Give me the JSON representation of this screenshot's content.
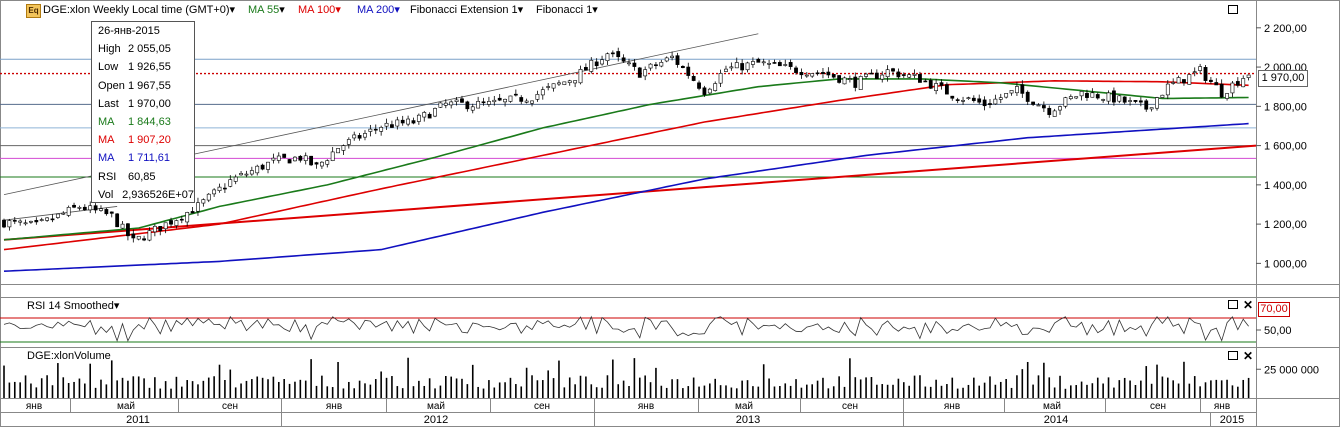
{
  "header": {
    "app_icon": "Eq",
    "title": "DGE:xlon Weekly Local time (GMT+0)",
    "legend": [
      {
        "label": "MA 55",
        "color": "#1a7a1a"
      },
      {
        "label": "MA 100",
        "color": "#dd0000"
      },
      {
        "label": "MA 200",
        "color": "#1010c0"
      },
      {
        "label": "Fibonacci Extension 1",
        "color": "#000000"
      },
      {
        "label": "Fibonacci 1",
        "color": "#000000"
      }
    ]
  },
  "tooltip": {
    "date": "26-янв-2015",
    "rows": [
      {
        "k": "High",
        "v": "2 055,05",
        "color": "#000000"
      },
      {
        "k": "Low",
        "v": "1 926,55",
        "color": "#000000"
      },
      {
        "k": "Open",
        "v": "1 967,55",
        "color": "#000000"
      },
      {
        "k": "Last",
        "v": "1 970,00",
        "color": "#000000"
      },
      {
        "k": "MA",
        "v": "1 844,63",
        "color": "#1a7a1a"
      },
      {
        "k": "MA",
        "v": "1 907,20",
        "color": "#dd0000"
      },
      {
        "k": "MA",
        "v": "1 711,61",
        "color": "#1010c0"
      },
      {
        "k": "RSI",
        "v": "60,85",
        "color": "#000000"
      },
      {
        "k": "Vol",
        "v": "2,936526E+07",
        "color": "#000000"
      }
    ]
  },
  "panels": {
    "rsi_title": "RSI 14 Smoothed",
    "volume_title": "DGE:xlonVolume"
  },
  "chart_data": {
    "type": "candlestick",
    "price_axis": {
      "ticks": [
        "2 200,00",
        "2 000,00",
        "1 800,00",
        "1 600,00",
        "1 400,00",
        "1 200,00",
        "1 000,00"
      ],
      "ylim": [
        900,
        2250
      ]
    },
    "last_price_label": "1 970,00",
    "rsi_axis": {
      "ticks": [
        "50,00"
      ],
      "ylim": [
        25,
        80
      ]
    },
    "rsi_level_label": "70,00",
    "volume_axis": {
      "ticks": [
        "25 000 000"
      ],
      "ylim": [
        0,
        40000000
      ]
    },
    "month_labels": [
      "янв",
      "май",
      "сен",
      "янв",
      "май",
      "сен",
      "янв",
      "май",
      "сен",
      "янв",
      "май",
      "сен",
      "янв"
    ],
    "year_labels": [
      "2011",
      "2012",
      "2013",
      "2014",
      "2015"
    ],
    "close_anchors": [
      [
        0,
        1210
      ],
      [
        6,
        1190
      ],
      [
        14,
        1290
      ],
      [
        20,
        1240
      ],
      [
        24,
        1110
      ],
      [
        30,
        1200
      ],
      [
        36,
        1290
      ],
      [
        42,
        1420
      ],
      [
        50,
        1520
      ],
      [
        55,
        1540
      ],
      [
        58,
        1490
      ],
      [
        62,
        1590
      ],
      [
        70,
        1700
      ],
      [
        76,
        1720
      ],
      [
        82,
        1810
      ],
      [
        90,
        1810
      ],
      [
        98,
        1850
      ],
      [
        106,
        1950
      ],
      [
        112,
        2070
      ],
      [
        118,
        1970
      ],
      [
        124,
        2050
      ],
      [
        130,
        1880
      ],
      [
        134,
        1990
      ],
      [
        140,
        2020
      ],
      [
        146,
        1990
      ],
      [
        152,
        1970
      ],
      [
        158,
        1920
      ],
      [
        164,
        1980
      ],
      [
        170,
        1940
      ],
      [
        176,
        1860
      ],
      [
        182,
        1810
      ],
      [
        188,
        1880
      ],
      [
        194,
        1780
      ],
      [
        200,
        1870
      ],
      [
        206,
        1840
      ],
      [
        212,
        1790
      ],
      [
        216,
        1900
      ],
      [
        222,
        1980
      ],
      [
        226,
        1870
      ],
      [
        231,
        1970
      ]
    ],
    "ma55_anchors": [
      [
        0,
        1120
      ],
      [
        25,
        1180
      ],
      [
        40,
        1290
      ],
      [
        60,
        1400
      ],
      [
        80,
        1540
      ],
      [
        100,
        1690
      ],
      [
        120,
        1810
      ],
      [
        140,
        1900
      ],
      [
        155,
        1940
      ],
      [
        170,
        1940
      ],
      [
        185,
        1920
      ],
      [
        200,
        1880
      ],
      [
        215,
        1840
      ],
      [
        231,
        1845
      ]
    ],
    "ma100_anchors": [
      [
        0,
        1070
      ],
      [
        40,
        1200
      ],
      [
        70,
        1380
      ],
      [
        100,
        1550
      ],
      [
        130,
        1720
      ],
      [
        155,
        1830
      ],
      [
        175,
        1910
      ],
      [
        195,
        1930
      ],
      [
        215,
        1925
      ],
      [
        231,
        1907
      ]
    ],
    "ma200_anchors": [
      [
        0,
        960
      ],
      [
        40,
        1010
      ],
      [
        70,
        1070
      ],
      [
        100,
        1260
      ],
      [
        130,
        1430
      ],
      [
        160,
        1550
      ],
      [
        190,
        1640
      ],
      [
        231,
        1712
      ]
    ],
    "hlines": [
      {
        "value": 1967,
        "color": "#cc0000",
        "dash": true
      },
      {
        "value": 2040,
        "color": "#7aa0c8"
      },
      {
        "value": 1810,
        "color": "#556b8c"
      },
      {
        "value": 1690,
        "color": "#8fb5d6"
      },
      {
        "value": 1600,
        "color": "#666666"
      },
      {
        "value": 1535,
        "color": "#d24ad2"
      },
      {
        "value": 1440,
        "color": "#1a7a1a"
      }
    ],
    "trend_line": {
      "color": "#dd0000",
      "from": [
        0,
        1120
      ],
      "to": [
        231,
        1600
      ]
    },
    "channel": {
      "color": "#555555",
      "lower_from": [
        0,
        1220
      ],
      "lower_to": [
        21,
        1290
      ],
      "upper_from": [
        0,
        1350
      ],
      "upper_to": [
        140,
        2170
      ]
    }
  }
}
